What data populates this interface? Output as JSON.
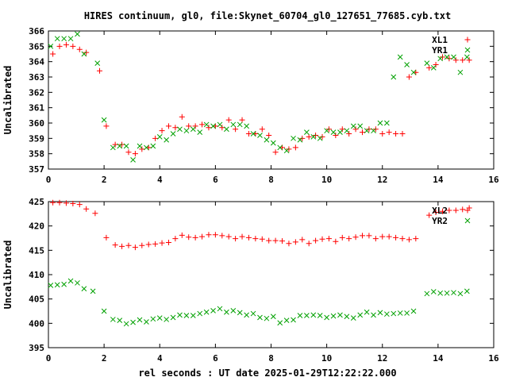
{
  "title": "HIRES continuum, gl0, file:Skynet_60704_gl0_127651_77685.cyb.txt",
  "xlabel": "rel seconds : UT date 2025-01-29T12:22:22.000",
  "colors": {
    "red": "#ff0000",
    "green": "#00a000",
    "frame": "#000000"
  },
  "chart_data": [
    {
      "type": "scatter",
      "ylabel": "Uncalibrated",
      "xlim": [
        0,
        16
      ],
      "ylim": [
        357,
        366
      ],
      "xticks": [
        "0",
        "2",
        "4",
        "6",
        "8",
        "10",
        "12",
        "14",
        "16"
      ],
      "yticks": [
        "357",
        "358",
        "359",
        "360",
        "361",
        "362",
        "363",
        "364",
        "365",
        "366"
      ],
      "legend_position": "top-right",
      "series": [
        {
          "name": "XL1",
          "color": "red",
          "marker": "plus",
          "x": [
            0.16,
            0.4,
            0.64,
            0.88,
            1.12,
            1.36,
            1.84,
            2.08,
            2.4,
            2.64,
            2.88,
            3.12,
            3.36,
            3.6,
            3.84,
            4.08,
            4.32,
            4.56,
            4.8,
            5.04,
            5.28,
            5.52,
            5.76,
            6.0,
            6.24,
            6.48,
            6.72,
            6.96,
            7.2,
            7.44,
            7.68,
            7.92,
            8.16,
            8.4,
            8.64,
            8.88,
            9.12,
            9.36,
            9.6,
            9.84,
            10.08,
            10.32,
            10.56,
            10.8,
            11.04,
            11.28,
            11.52,
            11.76,
            12.0,
            12.24,
            12.48,
            12.72,
            12.96,
            13.2,
            13.68,
            13.92,
            14.16,
            14.4,
            14.64,
            14.88,
            15.12
          ],
          "y": [
            364.5,
            365.0,
            365.1,
            365.0,
            364.8,
            364.6,
            363.4,
            359.8,
            358.6,
            358.6,
            358.1,
            358.0,
            358.3,
            358.4,
            359.0,
            359.5,
            359.8,
            359.7,
            360.4,
            359.8,
            359.8,
            359.9,
            359.7,
            359.8,
            359.7,
            360.2,
            359.6,
            360.2,
            359.3,
            359.3,
            359.6,
            359.2,
            358.1,
            358.4,
            358.3,
            358.4,
            359.0,
            359.1,
            359.2,
            359.1,
            359.6,
            359.2,
            359.6,
            359.3,
            359.6,
            359.4,
            359.6,
            359.6,
            359.3,
            359.4,
            359.3,
            359.3,
            363.0,
            363.3,
            363.6,
            363.8,
            364.3,
            364.2,
            364.1,
            364.1,
            364.1
          ]
        },
        {
          "name": "YR1",
          "color": "green",
          "marker": "x",
          "x": [
            0.08,
            0.32,
            0.56,
            0.8,
            1.04,
            1.28,
            1.76,
            2.0,
            2.32,
            2.56,
            2.8,
            3.04,
            3.28,
            3.52,
            3.76,
            4.0,
            4.24,
            4.48,
            4.72,
            4.96,
            5.2,
            5.44,
            5.68,
            5.92,
            6.16,
            6.4,
            6.64,
            6.88,
            7.12,
            7.36,
            7.6,
            7.84,
            8.08,
            8.32,
            8.56,
            8.8,
            9.04,
            9.28,
            9.52,
            9.76,
            10.0,
            10.24,
            10.48,
            10.72,
            10.96,
            11.2,
            11.44,
            11.68,
            11.92,
            12.16,
            12.4,
            12.64,
            12.88,
            13.12,
            13.6,
            13.84,
            14.08,
            14.32,
            14.56,
            14.8,
            15.04
          ],
          "y": [
            365.0,
            365.5,
            365.5,
            365.5,
            365.8,
            364.5,
            363.9,
            360.2,
            358.4,
            358.5,
            358.5,
            357.6,
            358.5,
            358.4,
            358.5,
            359.1,
            358.9,
            359.3,
            359.6,
            359.5,
            359.6,
            359.4,
            359.9,
            359.8,
            359.9,
            359.6,
            359.9,
            359.9,
            359.8,
            359.3,
            359.2,
            358.9,
            358.7,
            358.4,
            358.2,
            359.0,
            358.9,
            359.4,
            359.1,
            359.0,
            359.5,
            359.4,
            359.4,
            359.5,
            359.8,
            359.8,
            359.5,
            359.5,
            360.0,
            360.0,
            363.0,
            364.3,
            363.8,
            363.3,
            363.9,
            363.6,
            364.2,
            364.3,
            364.3,
            363.3,
            364.3
          ]
        }
      ]
    },
    {
      "type": "scatter",
      "ylabel": "Uncalibrated",
      "xlim": [
        0,
        16
      ],
      "ylim": [
        395,
        425
      ],
      "xticks": [
        "0",
        "2",
        "4",
        "6",
        "8",
        "10",
        "12",
        "14",
        "16"
      ],
      "yticks": [
        "395",
        "400",
        "405",
        "410",
        "415",
        "420",
        "425"
      ],
      "legend_position": "top-right",
      "series": [
        {
          "name": "XL2",
          "color": "red",
          "marker": "plus",
          "x": [
            0.16,
            0.4,
            0.64,
            0.88,
            1.12,
            1.36,
            1.68,
            2.08,
            2.4,
            2.64,
            2.88,
            3.12,
            3.36,
            3.6,
            3.84,
            4.08,
            4.32,
            4.56,
            4.8,
            5.04,
            5.28,
            5.52,
            5.76,
            6.0,
            6.24,
            6.48,
            6.72,
            6.96,
            7.2,
            7.44,
            7.68,
            7.92,
            8.16,
            8.4,
            8.64,
            8.88,
            9.12,
            9.36,
            9.6,
            9.84,
            10.08,
            10.32,
            10.56,
            10.8,
            11.04,
            11.28,
            11.52,
            11.76,
            12.0,
            12.24,
            12.48,
            12.72,
            12.96,
            13.2,
            13.68,
            13.92,
            14.16,
            14.4,
            14.64,
            14.88,
            15.12
          ],
          "y": [
            424.8,
            424.8,
            424.7,
            424.6,
            424.4,
            423.5,
            422.6,
            417.6,
            416.1,
            415.8,
            416.0,
            415.6,
            416.0,
            416.2,
            416.3,
            416.5,
            416.6,
            417.4,
            418.1,
            417.7,
            417.6,
            417.8,
            418.2,
            418.2,
            418.0,
            417.8,
            417.4,
            417.8,
            417.6,
            417.4,
            417.3,
            417.0,
            417.0,
            416.9,
            416.4,
            416.7,
            417.2,
            416.4,
            417.0,
            417.3,
            417.4,
            416.8,
            417.6,
            417.4,
            417.7,
            418.0,
            418.0,
            417.4,
            417.8,
            417.8,
            417.6,
            417.4,
            417.2,
            417.4,
            422.2,
            422.8,
            423.0,
            423.2,
            423.2,
            423.4,
            423.7
          ]
        },
        {
          "name": "YR2",
          "color": "green",
          "marker": "x",
          "x": [
            0.08,
            0.32,
            0.56,
            0.8,
            1.04,
            1.28,
            1.6,
            2.0,
            2.32,
            2.56,
            2.8,
            3.04,
            3.28,
            3.52,
            3.76,
            4.0,
            4.24,
            4.48,
            4.72,
            4.96,
            5.2,
            5.44,
            5.68,
            5.92,
            6.16,
            6.4,
            6.64,
            6.88,
            7.12,
            7.36,
            7.6,
            7.84,
            8.08,
            8.32,
            8.56,
            8.8,
            9.04,
            9.28,
            9.52,
            9.76,
            10.0,
            10.24,
            10.48,
            10.72,
            10.96,
            11.2,
            11.44,
            11.68,
            11.92,
            12.16,
            12.4,
            12.64,
            12.88,
            13.12,
            13.6,
            13.84,
            14.08,
            14.32,
            14.56,
            14.8,
            15.04
          ],
          "y": [
            407.8,
            407.9,
            408.0,
            408.7,
            408.3,
            407.1,
            406.6,
            402.5,
            400.8,
            400.6,
            399.9,
            400.2,
            400.7,
            400.3,
            400.9,
            401.1,
            400.8,
            401.2,
            401.7,
            401.6,
            401.6,
            402.0,
            402.3,
            402.6,
            403.0,
            402.3,
            402.6,
            402.2,
            401.7,
            402.0,
            401.2,
            401.0,
            401.4,
            400.1,
            400.6,
            400.7,
            401.6,
            401.6,
            401.7,
            401.6,
            401.2,
            401.5,
            401.7,
            401.4,
            401.1,
            401.7,
            402.3,
            401.7,
            402.2,
            401.9,
            402.0,
            402.1,
            402.1,
            402.5,
            406.1,
            406.5,
            406.2,
            406.2,
            406.3,
            406.1,
            406.6
          ]
        }
      ]
    }
  ]
}
